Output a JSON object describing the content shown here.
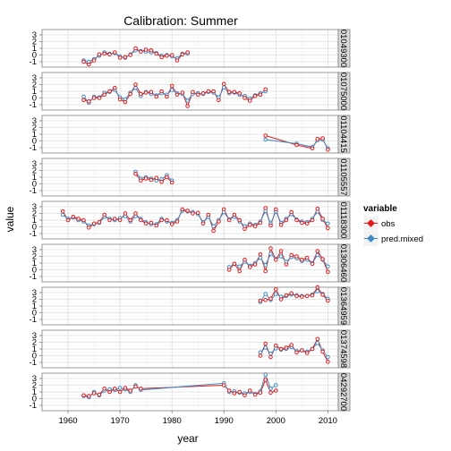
{
  "chart_data": {
    "type": "line",
    "title": "Calibration: Summer",
    "xlabel": "year",
    "ylabel": "value",
    "xlim": [
      1955,
      2012
    ],
    "ylim": [
      -1.8,
      3.8
    ],
    "x_ticks": [
      1960,
      1970,
      1980,
      1990,
      2000,
      2010
    ],
    "y_ticks": [
      -1,
      0,
      1,
      2,
      3
    ],
    "grid": true,
    "legend": {
      "title": "variable",
      "placement": "right",
      "entries": [
        {
          "name": "obs",
          "color": "#e31a1c"
        },
        {
          "name": "pred.mixed",
          "color": "#3b8bc2"
        }
      ]
    },
    "series_colors": {
      "obs": "#e31a1c",
      "pred": "#3b8bc2"
    },
    "panels": [
      {
        "label": "01049300",
        "x": [
          1963,
          1964,
          1965,
          1966,
          1967,
          1968,
          1969,
          1970,
          1971,
          1972,
          1973,
          1974,
          1975,
          1976,
          1977,
          1978,
          1979,
          1980,
          1981,
          1982,
          1983
        ],
        "obs": [
          -1.0,
          -1.4,
          -0.8,
          0.1,
          0.2,
          0.1,
          0.4,
          -0.4,
          -0.3,
          0.0,
          1.0,
          0.5,
          0.8,
          0.7,
          0.2,
          -0.3,
          -0.1,
          0.0,
          -0.8,
          0.1,
          0.4
        ],
        "pred": [
          -0.8,
          -1.0,
          -0.6,
          -0.1,
          0.4,
          0.2,
          0.3,
          -0.2,
          -0.4,
          0.1,
          0.7,
          0.6,
          0.5,
          0.4,
          0.3,
          -0.1,
          0.0,
          -0.2,
          -0.5,
          0.2,
          0.2
        ]
      },
      {
        "label": "01075000",
        "x": [
          1963,
          1964,
          1965,
          1966,
          1967,
          1968,
          1969,
          1970,
          1971,
          1972,
          1973,
          1974,
          1975,
          1976,
          1977,
          1978,
          1979,
          1980,
          1981,
          1982,
          1983,
          1984,
          1985,
          1986,
          1987,
          1988,
          1989,
          1990,
          1991,
          1992,
          1993,
          1994,
          1995,
          1996,
          1997,
          1998
        ],
        "obs": [
          -0.3,
          -0.5,
          0.0,
          0.0,
          0.5,
          1.0,
          1.5,
          -0.2,
          -0.6,
          0.6,
          2.0,
          0.6,
          0.8,
          0.9,
          0.2,
          1.0,
          0.2,
          1.8,
          0.5,
          0.8,
          -1.2,
          0.9,
          0.5,
          0.7,
          1.0,
          1.0,
          -0.3,
          2.1,
          0.9,
          0.9,
          0.7,
          0.0,
          -0.4,
          0.3,
          0.5,
          1.3
        ],
        "pred": [
          0.2,
          -0.7,
          0.2,
          0.1,
          0.8,
          0.9,
          1.2,
          0.1,
          -0.2,
          0.8,
          1.5,
          0.3,
          0.9,
          0.6,
          0.4,
          0.7,
          0.5,
          1.2,
          0.7,
          0.6,
          -0.4,
          0.6,
          0.7,
          0.6,
          0.9,
          0.8,
          0.1,
          1.6,
          0.7,
          0.8,
          0.5,
          0.3,
          -0.1,
          0.4,
          0.7,
          1.0
        ]
      },
      {
        "label": "01104415",
        "x": [
          1998,
          2004,
          2007,
          2008,
          2009,
          2010
        ],
        "obs": [
          0.8,
          -0.6,
          -1.1,
          0.3,
          0.4,
          -1.3
        ],
        "pred": [
          0.2,
          -0.4,
          -0.9,
          0.1,
          0.2,
          -1.1
        ]
      },
      {
        "label": "01105557",
        "x": [
          1973,
          1974,
          1975,
          1976,
          1977,
          1978,
          1979,
          1980
        ],
        "obs": [
          1.5,
          0.5,
          0.8,
          0.6,
          0.9,
          0.3,
          1.0,
          0.2
        ],
        "pred": [
          1.8,
          0.8,
          1.0,
          0.8,
          0.5,
          0.7,
          1.3,
          0.5
        ]
      },
      {
        "label": "01118300",
        "x": [
          1959,
          1960,
          1961,
          1962,
          1963,
          1964,
          1965,
          1966,
          1967,
          1968,
          1969,
          1970,
          1971,
          1972,
          1973,
          1974,
          1975,
          1976,
          1977,
          1978,
          1979,
          1980,
          1981,
          1982,
          1983,
          1984,
          1985,
          1986,
          1987,
          1988,
          1989,
          1990,
          1991,
          1992,
          1993,
          1994,
          1995,
          1996,
          1997,
          1998,
          1999,
          2000,
          2001,
          2002,
          2003,
          2004,
          2005,
          2006,
          2007,
          2008,
          2009,
          2010
        ],
        "obs": [
          2.3,
          1.0,
          1.5,
          1.2,
          1.0,
          -0.1,
          0.5,
          0.7,
          1.8,
          1.0,
          1.2,
          1.0,
          2.0,
          1.0,
          2.0,
          1.0,
          0.5,
          0.6,
          0.2,
          1.0,
          1.0,
          0.4,
          0.8,
          2.6,
          2.4,
          2.0,
          2.1,
          0.5,
          1.8,
          -0.6,
          0.8,
          2.6,
          1.0,
          1.8,
          1.0,
          -0.3,
          0.3,
          0.1,
          0.6,
          2.8,
          0.2,
          2.6,
          0.3,
          1.0,
          2.2,
          1.0,
          0.6,
          0.5,
          1.0,
          2.7,
          1.2,
          -0.2
        ],
        "pred": [
          1.8,
          1.2,
          1.4,
          1.0,
          0.8,
          0.2,
          0.4,
          0.6,
          1.5,
          1.2,
          1.0,
          1.3,
          1.6,
          0.8,
          1.6,
          1.2,
          0.7,
          0.4,
          0.4,
          1.2,
          0.8,
          0.6,
          1.0,
          2.4,
          2.3,
          2.2,
          1.9,
          0.7,
          1.5,
          0.1,
          1.0,
          2.2,
          1.1,
          1.5,
          0.8,
          0.1,
          0.5,
          0.3,
          0.8,
          2.4,
          0.5,
          2.3,
          0.6,
          1.2,
          1.9,
          1.1,
          0.8,
          0.7,
          1.2,
          2.3,
          1.0,
          0.5
        ]
      },
      {
        "label": "01306460",
        "x": [
          1991,
          1992,
          1993,
          1994,
          1995,
          1996,
          1997,
          1998,
          1999,
          2000,
          2001,
          2002,
          2003,
          2004,
          2005,
          2006,
          2007,
          2008,
          2009,
          2010
        ],
        "obs": [
          0.0,
          0.9,
          -0.2,
          1.5,
          0.4,
          0.8,
          2.3,
          -0.2,
          3.2,
          1.5,
          2.8,
          0.8,
          2.2,
          2.0,
          1.5,
          1.8,
          0.9,
          2.8,
          1.6,
          -0.3
        ],
        "pred": [
          0.4,
          0.9,
          0.5,
          1.2,
          0.6,
          1.0,
          1.8,
          0.7,
          2.4,
          1.6,
          2.0,
          1.2,
          1.9,
          1.7,
          1.3,
          1.5,
          1.0,
          2.2,
          1.5,
          0.5
        ]
      },
      {
        "label": "01364959",
        "x": [
          1997,
          1998,
          1999,
          2000,
          2001,
          2002,
          2003,
          2004,
          2005,
          2006,
          2007,
          2008,
          2009,
          2010
        ],
        "obs": [
          1.8,
          1.9,
          2.1,
          3.5,
          2.0,
          2.6,
          2.9,
          2.5,
          2.4,
          2.5,
          2.6,
          3.8,
          2.7,
          1.8
        ],
        "pred": [
          1.6,
          2.8,
          1.9,
          2.8,
          2.4,
          2.5,
          2.7,
          2.6,
          2.5,
          2.5,
          2.7,
          3.2,
          2.8,
          2.1
        ]
      },
      {
        "label": "01374598",
        "x": [
          1997,
          1998,
          1999,
          2000,
          2001,
          2002,
          2003,
          2004,
          2005,
          2006,
          2007,
          2008,
          2009,
          2010
        ],
        "obs": [
          0.0,
          1.8,
          -0.2,
          1.5,
          1.0,
          1.2,
          1.6,
          0.5,
          0.8,
          0.4,
          1.0,
          2.5,
          0.6,
          -0.9
        ],
        "pred": [
          0.5,
          1.2,
          0.3,
          1.1,
          0.9,
          1.0,
          1.3,
          0.7,
          0.8,
          0.6,
          1.0,
          1.9,
          0.8,
          -0.2
        ]
      },
      {
        "label": "04292700",
        "x": [
          1963,
          1964,
          1965,
          1966,
          1967,
          1968,
          1969,
          1970,
          1971,
          1972,
          1973,
          1974,
          1990,
          1991,
          1992,
          1993,
          1994,
          1995,
          1996,
          1997,
          1998,
          1999,
          2000
        ],
        "obs": [
          0.5,
          0.4,
          0.8,
          0.6,
          1.5,
          1.0,
          1.5,
          1.0,
          1.6,
          1.2,
          1.8,
          1.5,
          2.0,
          1.2,
          0.8,
          1.0,
          0.5,
          1.2,
          0.6,
          0.9,
          2.8,
          0.9,
          1.2
        ],
        "pred": [
          0.4,
          0.2,
          1.0,
          0.5,
          1.2,
          1.4,
          1.3,
          1.6,
          1.4,
          1.0,
          2.0,
          1.3,
          2.3,
          1.0,
          1.1,
          0.9,
          0.8,
          1.0,
          0.7,
          1.1,
          3.6,
          1.5,
          2.0
        ]
      }
    ]
  }
}
